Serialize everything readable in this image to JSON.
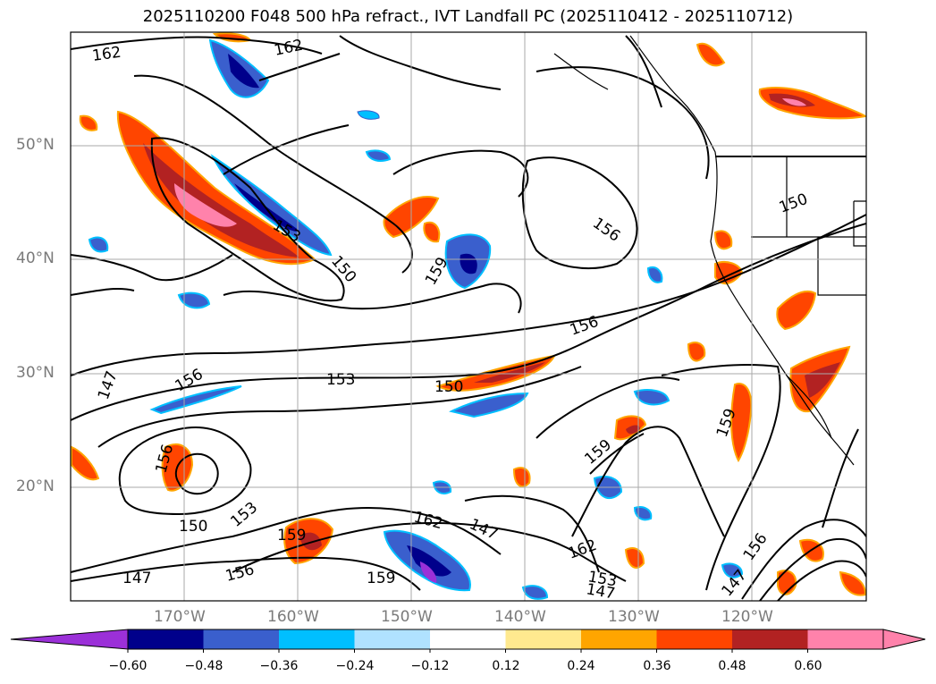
{
  "title": "2025110200 F048 500 hPa refract., IVT Landfall PC (2025110412 - 2025110712)",
  "lat_labels": [
    "50°N",
    "40°N",
    "30°N",
    "20°N"
  ],
  "lon_labels": [
    "170°W",
    "160°W",
    "150°W",
    "140°W",
    "130°W",
    "120°W"
  ],
  "contour_labels": [
    "162",
    "162",
    "153",
    "150",
    "159",
    "156",
    "156",
    "153",
    "150",
    "147",
    "156",
    "156",
    "150",
    "159",
    "153",
    "147",
    "156",
    "162",
    "147",
    "159",
    "159",
    "162",
    "153",
    "147",
    "159",
    "150",
    "156",
    "147"
  ],
  "colorbar": {
    "labels": [
      "−0.60",
      "−0.48",
      "−0.36",
      "−0.24",
      "−0.12",
      "0.12",
      "0.24",
      "0.36",
      "0.48",
      "0.60"
    ],
    "colors": [
      "#9b30d8",
      "#00008b",
      "#3a5fcd",
      "#00bfff",
      "#b0e2ff",
      "#ffffff",
      "#ffe98f",
      "#ffa500",
      "#ff4500",
      "#b22222",
      "#ff82ab",
      "#ff82ab"
    ]
  }
}
